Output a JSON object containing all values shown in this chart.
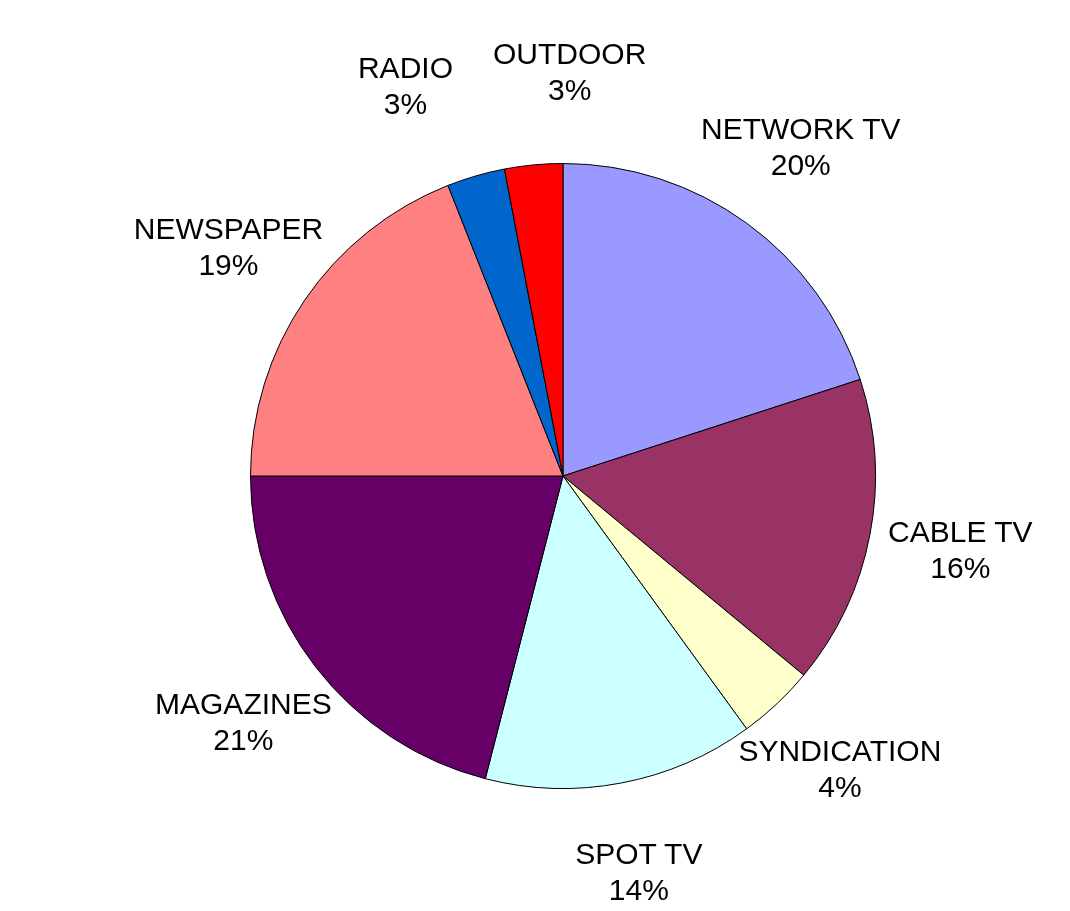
{
  "chart_data": {
    "type": "pie",
    "categories": [
      "NETWORK TV",
      "CABLE TV",
      "SYNDICATION",
      "SPOT TV",
      "MAGAZINES",
      "NEWSPAPER",
      "RADIO",
      "OUTDOOR"
    ],
    "values": [
      20,
      16,
      4,
      14,
      21,
      19,
      3,
      3
    ],
    "value_labels": [
      "20%",
      "16%",
      "4%",
      "14%",
      "21%",
      "19%",
      "3%",
      "3%"
    ],
    "colors": [
      "#9999ff",
      "#993366",
      "#ffffcc",
      "#ccffff",
      "#660066",
      "#ff8080",
      "#0066cc",
      "#ff0000"
    ]
  }
}
